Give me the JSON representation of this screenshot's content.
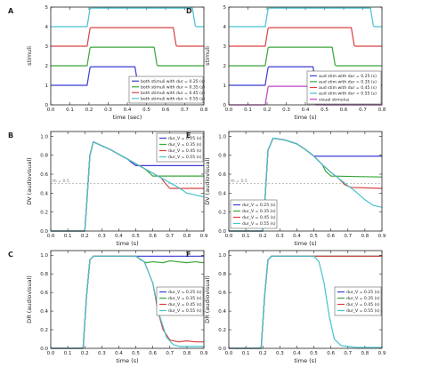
{
  "chart_data": [
    {
      "panel": "A",
      "type": "line",
      "xlabel": "time (sec)",
      "ylabel": "stimuli",
      "xlim": [
        0.0,
        0.8
      ],
      "ylim": [
        0,
        5
      ],
      "xticks": [
        "0.0",
        "0.1",
        "0.2",
        "0.3",
        "0.4",
        "0.5",
        "0.6",
        "0.7",
        "0.8"
      ],
      "yticks": [
        "0",
        "1",
        "2",
        "3",
        "4",
        "5"
      ],
      "legend": "bottom-right",
      "series": [
        {
          "name": "both stimuli with dur = 0.25 (s)",
          "color": "#3b3bd4",
          "x": [
            0.0,
            0.19,
            0.205,
            0.21,
            0.44,
            0.455,
            0.46,
            0.8
          ],
          "y": [
            1.0,
            1.0,
            1.9,
            1.95,
            1.95,
            1.05,
            1.0,
            1.0
          ]
        },
        {
          "name": "both stimuli with dur = 0.35 (s)",
          "color": "#3aa43a",
          "x": [
            0.0,
            0.19,
            0.205,
            0.21,
            0.54,
            0.555,
            0.56,
            0.8
          ],
          "y": [
            2.0,
            2.0,
            2.9,
            2.95,
            2.95,
            2.05,
            2.0,
            2.0
          ]
        },
        {
          "name": "both stimuli with dur = 0.45 (s)",
          "color": "#d94141",
          "x": [
            0.0,
            0.19,
            0.205,
            0.21,
            0.64,
            0.655,
            0.66,
            0.8
          ],
          "y": [
            3.0,
            3.0,
            3.9,
            3.95,
            3.95,
            3.05,
            3.0,
            3.0
          ]
        },
        {
          "name": "both stimuli with dur = 0.55 (s)",
          "color": "#45c3cf",
          "x": [
            0.0,
            0.19,
            0.205,
            0.21,
            0.74,
            0.755,
            0.76,
            0.8
          ],
          "y": [
            4.0,
            4.0,
            4.9,
            4.95,
            4.95,
            4.05,
            4.0,
            4.0
          ]
        }
      ]
    },
    {
      "panel": "D",
      "type": "line",
      "xlabel": "time (s)",
      "ylabel": "stimuli",
      "xlim": [
        0.0,
        0.8
      ],
      "ylim": [
        0,
        5
      ],
      "xticks": [
        "0.0",
        "0.1",
        "0.2",
        "0.3",
        "0.4",
        "0.5",
        "0.6",
        "0.7",
        "0.8"
      ],
      "yticks": [
        "0",
        "1",
        "2",
        "3",
        "4",
        "5"
      ],
      "legend": "bottom-right",
      "series": [
        {
          "name": "aud stim with dur = 0.25 (s)",
          "color": "#3b3bd4",
          "x": [
            0.0,
            0.19,
            0.205,
            0.21,
            0.44,
            0.455,
            0.46,
            0.8
          ],
          "y": [
            1.0,
            1.0,
            1.9,
            1.95,
            1.95,
            1.05,
            1.0,
            1.0
          ]
        },
        {
          "name": "aud stim with dur = 0.35 (s)",
          "color": "#3aa43a",
          "x": [
            0.0,
            0.19,
            0.205,
            0.21,
            0.54,
            0.555,
            0.56,
            0.8
          ],
          "y": [
            2.0,
            2.0,
            2.9,
            2.95,
            2.95,
            2.05,
            2.0,
            2.0
          ]
        },
        {
          "name": "aud stim with dur = 0.45 (s)",
          "color": "#d94141",
          "x": [
            0.0,
            0.19,
            0.205,
            0.21,
            0.64,
            0.655,
            0.66,
            0.8
          ],
          "y": [
            3.0,
            3.0,
            3.9,
            3.95,
            3.95,
            3.05,
            3.0,
            3.0
          ]
        },
        {
          "name": "aud stim with dur = 0.55 (s)",
          "color": "#45c3cf",
          "x": [
            0.0,
            0.19,
            0.205,
            0.21,
            0.74,
            0.755,
            0.76,
            0.8
          ],
          "y": [
            4.0,
            4.0,
            4.9,
            4.95,
            4.95,
            4.05,
            4.0,
            4.0
          ]
        },
        {
          "name": "visual stimulus",
          "color": "#c040c0",
          "x": [
            0.0,
            0.19,
            0.205,
            0.21,
            0.44,
            0.455,
            0.46,
            0.8
          ],
          "y": [
            0.0,
            0.0,
            0.9,
            0.95,
            0.95,
            0.05,
            0.0,
            0.0
          ]
        }
      ]
    },
    {
      "panel": "B",
      "type": "line",
      "xlabel": "time (s)",
      "ylabel": "DV (audiovisual)",
      "xlim": [
        0.0,
        0.9
      ],
      "ylim": [
        0.0,
        1.05
      ],
      "xticks": [
        "0.0",
        "0.1",
        "0.2",
        "0.3",
        "0.4",
        "0.5",
        "0.6",
        "0.7",
        "0.8",
        "0.9"
      ],
      "yticks": [
        "0.0",
        "0.2",
        "0.4",
        "0.6",
        "0.8",
        "1.0"
      ],
      "threshold": {
        "y": 0.5,
        "label": "th = 0.5"
      },
      "legend": "top-right",
      "series": [
        {
          "name": "dur_V = 0.25 (s)",
          "color": "#3b3bd4",
          "x": [
            0.0,
            0.2,
            0.21,
            0.23,
            0.25,
            0.35,
            0.45,
            0.47,
            0.5,
            0.9
          ],
          "y": [
            0.0,
            0.0,
            0.25,
            0.8,
            0.94,
            0.86,
            0.76,
            0.73,
            0.69,
            0.69
          ]
        },
        {
          "name": "dur_V = 0.35 (s)",
          "color": "#3aa43a",
          "x": [
            0.0,
            0.2,
            0.21,
            0.23,
            0.25,
            0.35,
            0.45,
            0.55,
            0.57,
            0.6,
            0.9
          ],
          "y": [
            0.0,
            0.0,
            0.25,
            0.8,
            0.94,
            0.86,
            0.76,
            0.66,
            0.63,
            0.58,
            0.58
          ]
        },
        {
          "name": "dur_V = 0.45 (s)",
          "color": "#d94141",
          "x": [
            0.0,
            0.2,
            0.21,
            0.23,
            0.25,
            0.35,
            0.45,
            0.55,
            0.65,
            0.67,
            0.7,
            0.9
          ],
          "y": [
            0.0,
            0.0,
            0.25,
            0.8,
            0.94,
            0.86,
            0.76,
            0.66,
            0.56,
            0.51,
            0.45,
            0.45
          ]
        },
        {
          "name": "dur_V = 0.55 (s)",
          "color": "#45c3cf",
          "x": [
            0.0,
            0.2,
            0.21,
            0.23,
            0.25,
            0.35,
            0.45,
            0.55,
            0.65,
            0.75,
            0.8,
            0.9
          ],
          "y": [
            0.0,
            0.0,
            0.25,
            0.8,
            0.94,
            0.86,
            0.76,
            0.66,
            0.56,
            0.46,
            0.4,
            0.36
          ]
        }
      ]
    },
    {
      "panel": "E",
      "type": "line",
      "xlabel": "time (s)",
      "ylabel": "DV (audiovisual)",
      "xlim": [
        0.0,
        0.9
      ],
      "ylim": [
        0.0,
        1.05
      ],
      "xticks": [
        "0.0",
        "0.1",
        "0.2",
        "0.3",
        "0.4",
        "0.5",
        "0.6",
        "0.7",
        "0.8",
        "0.9"
      ],
      "yticks": [
        "0.0",
        "0.2",
        "0.4",
        "0.6",
        "0.8",
        "1.0"
      ],
      "threshold": {
        "y": 0.5,
        "label": "th = 0.5"
      },
      "legend": "bottom-left",
      "series": [
        {
          "name": "dur_V = 0.25 (s)",
          "color": "#3b3bd4",
          "x": [
            0.0,
            0.2,
            0.21,
            0.23,
            0.26,
            0.33,
            0.4,
            0.45,
            0.48,
            0.5,
            0.9
          ],
          "y": [
            0.0,
            0.0,
            0.25,
            0.85,
            0.98,
            0.96,
            0.92,
            0.86,
            0.82,
            0.79,
            0.79
          ]
        },
        {
          "name": "dur_V = 0.35 (s)",
          "color": "#3aa43a",
          "x": [
            0.0,
            0.2,
            0.21,
            0.23,
            0.26,
            0.33,
            0.4,
            0.45,
            0.5,
            0.55,
            0.57,
            0.6,
            0.9
          ],
          "y": [
            0.0,
            0.0,
            0.25,
            0.85,
            0.98,
            0.96,
            0.92,
            0.86,
            0.79,
            0.7,
            0.63,
            0.58,
            0.57
          ]
        },
        {
          "name": "dur_V = 0.45 (s)",
          "color": "#d94141",
          "x": [
            0.0,
            0.2,
            0.21,
            0.23,
            0.26,
            0.33,
            0.4,
            0.45,
            0.5,
            0.55,
            0.6,
            0.65,
            0.68,
            0.72,
            0.9
          ],
          "y": [
            0.0,
            0.0,
            0.25,
            0.85,
            0.98,
            0.96,
            0.92,
            0.86,
            0.79,
            0.7,
            0.62,
            0.55,
            0.49,
            0.46,
            0.45
          ]
        },
        {
          "name": "dur_V = 0.55 (s)",
          "color": "#45c3cf",
          "x": [
            0.0,
            0.2,
            0.21,
            0.23,
            0.26,
            0.33,
            0.4,
            0.45,
            0.5,
            0.55,
            0.6,
            0.65,
            0.7,
            0.75,
            0.8,
            0.85,
            0.9
          ],
          "y": [
            0.0,
            0.0,
            0.25,
            0.85,
            0.98,
            0.96,
            0.92,
            0.86,
            0.79,
            0.7,
            0.62,
            0.55,
            0.48,
            0.41,
            0.33,
            0.27,
            0.25
          ]
        }
      ]
    },
    {
      "panel": "C",
      "type": "line",
      "xlabel": "time (s)",
      "ylabel": "DR (audiovisual)",
      "xlim": [
        0.0,
        0.9
      ],
      "ylim": [
        0.0,
        1.05
      ],
      "xticks": [
        "0.0",
        "0.1",
        "0.2",
        "0.3",
        "0.4",
        "0.5",
        "0.6",
        "0.7",
        "0.8",
        "0.9"
      ],
      "yticks": [
        "0.0",
        "0.2",
        "0.4",
        "0.6",
        "0.8",
        "1.0"
      ],
      "legend": "center-right",
      "series": [
        {
          "name": "dur_V = 0.25 (s)",
          "color": "#3b3bd4",
          "x": [
            0.0,
            0.19,
            0.21,
            0.23,
            0.25,
            0.9
          ],
          "y": [
            0.0,
            0.0,
            0.55,
            0.95,
            0.99,
            0.99
          ]
        },
        {
          "name": "dur_V = 0.35 (s)",
          "color": "#3aa43a",
          "x": [
            0.0,
            0.19,
            0.21,
            0.23,
            0.25,
            0.5,
            0.53,
            0.56,
            0.6,
            0.66,
            0.7,
            0.75,
            0.8,
            0.85,
            0.9
          ],
          "y": [
            0.0,
            0.0,
            0.55,
            0.95,
            0.99,
            0.99,
            0.95,
            0.92,
            0.93,
            0.92,
            0.94,
            0.93,
            0.92,
            0.93,
            0.92
          ]
        },
        {
          "name": "dur_V = 0.45 (s)",
          "color": "#d94141",
          "x": [
            0.0,
            0.19,
            0.21,
            0.23,
            0.25,
            0.5,
            0.55,
            0.6,
            0.63,
            0.66,
            0.7,
            0.75,
            0.8,
            0.85,
            0.9
          ],
          "y": [
            0.0,
            0.0,
            0.55,
            0.95,
            0.99,
            0.99,
            0.93,
            0.7,
            0.4,
            0.2,
            0.09,
            0.07,
            0.08,
            0.07,
            0.07
          ]
        },
        {
          "name": "dur_V = 0.55 (s)",
          "color": "#45c3cf",
          "x": [
            0.0,
            0.19,
            0.21,
            0.23,
            0.25,
            0.5,
            0.55,
            0.6,
            0.64,
            0.68,
            0.72,
            0.76,
            0.8,
            0.85,
            0.9
          ],
          "y": [
            0.0,
            0.0,
            0.55,
            0.95,
            0.99,
            0.99,
            0.93,
            0.7,
            0.35,
            0.12,
            0.04,
            0.02,
            0.02,
            0.02,
            0.02
          ]
        }
      ]
    },
    {
      "panel": "F",
      "type": "line",
      "xlabel": "time (s)",
      "ylabel": "DR (audiovisual)",
      "xlim": [
        0.0,
        0.9
      ],
      "ylim": [
        0.0,
        1.05
      ],
      "xticks": [
        "0.0",
        "0.1",
        "0.2",
        "0.3",
        "0.4",
        "0.5",
        "0.6",
        "0.7",
        "0.8",
        "0.9"
      ],
      "yticks": [
        "0.0",
        "0.2",
        "0.4",
        "0.6",
        "0.8",
        "1.0"
      ],
      "legend": "center-right",
      "series": [
        {
          "name": "dur_V = 0.25 (s)",
          "color": "#3b3bd4",
          "x": [
            0.0,
            0.19,
            0.21,
            0.23,
            0.25,
            0.9
          ],
          "y": [
            0.0,
            0.0,
            0.55,
            0.95,
            0.99,
            0.99
          ]
        },
        {
          "name": "dur_V = 0.35 (s)",
          "color": "#3aa43a",
          "x": [
            0.0,
            0.19,
            0.21,
            0.23,
            0.25,
            0.9
          ],
          "y": [
            0.0,
            0.0,
            0.55,
            0.95,
            0.99,
            0.99
          ]
        },
        {
          "name": "dur_V = 0.45 (s)",
          "color": "#d94141",
          "x": [
            0.0,
            0.19,
            0.21,
            0.23,
            0.25,
            0.9
          ],
          "y": [
            0.0,
            0.0,
            0.55,
            0.95,
            0.99,
            0.99
          ]
        },
        {
          "name": "dur_V = 0.55 (s)",
          "color": "#45c3cf",
          "x": [
            0.0,
            0.19,
            0.21,
            0.23,
            0.25,
            0.5,
            0.53,
            0.56,
            0.59,
            0.62,
            0.66,
            0.7,
            0.75,
            0.9
          ],
          "y": [
            0.0,
            0.0,
            0.55,
            0.95,
            0.99,
            0.99,
            0.93,
            0.7,
            0.35,
            0.1,
            0.03,
            0.02,
            0.01,
            0.01
          ]
        }
      ]
    }
  ]
}
